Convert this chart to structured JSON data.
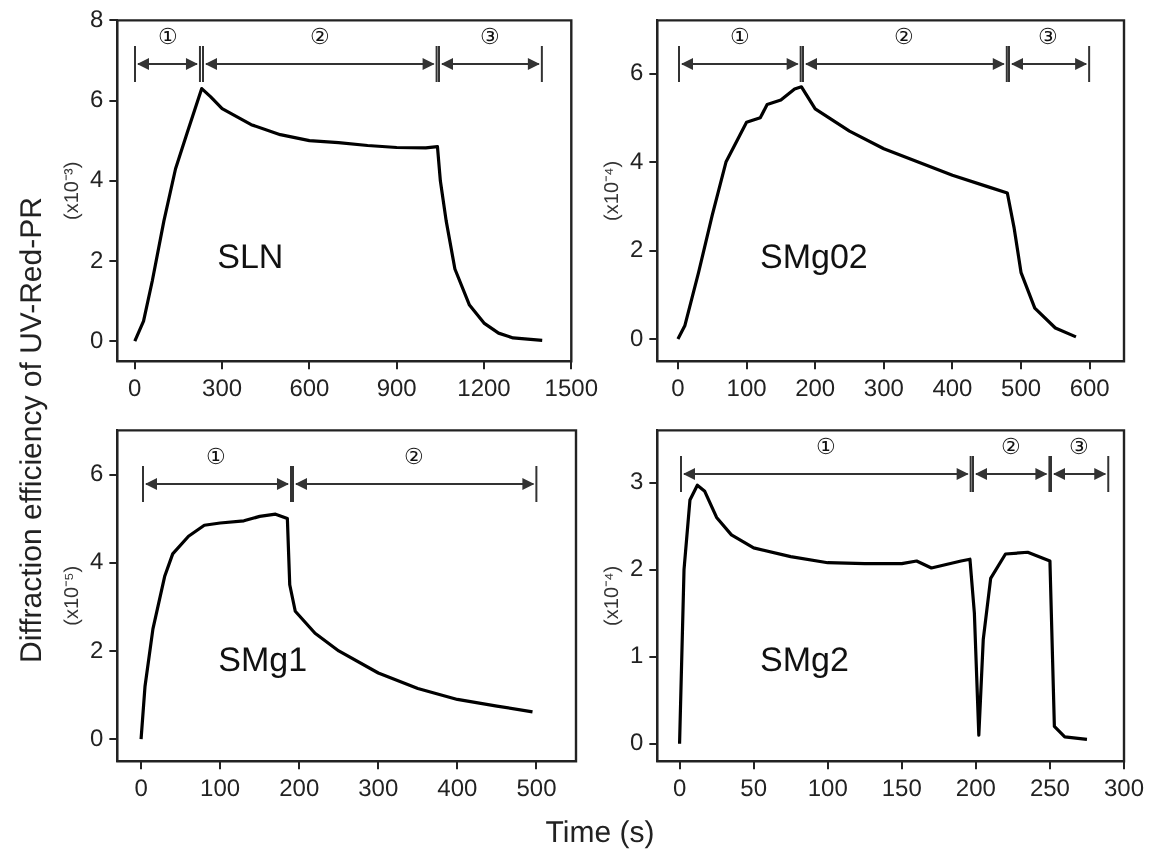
{
  "chart_data": [
    {
      "type": "line",
      "ylabel": "(x10⁻³)",
      "annotations": [
        "SLN",
        "①",
        "②",
        "③",
        "Diffraction efficiency of UV-Red-PR"
      ],
      "xlim": [
        -60,
        1500
      ],
      "xticks": [
        0,
        300,
        600,
        900,
        1200,
        1500
      ],
      "ylim": [
        -0.5,
        8
      ],
      "yticks": [
        0,
        2,
        4,
        6,
        8
      ],
      "grid": false,
      "legend": false,
      "marker": "none",
      "line_style": "solid",
      "series": [
        {
          "color": "#000000",
          "x": [
            0,
            30,
            60,
            100,
            140,
            180,
            230,
            260,
            300,
            400,
            500,
            600,
            700,
            800,
            900,
            1000,
            1040,
            1050,
            1070,
            1100,
            1150,
            1200,
            1250,
            1300,
            1400
          ],
          "values": [
            0,
            0.5,
            1.5,
            3,
            4.3,
            5.2,
            6.3,
            6.1,
            5.8,
            5.4,
            5.15,
            5,
            4.95,
            4.88,
            4.83,
            4.82,
            4.85,
            4,
            3,
            1.8,
            0.9,
            0.45,
            0.2,
            0.08,
            0.02
          ]
        }
      ]
    },
    {
      "type": "line",
      "ylabel": "(x10⁻⁴)",
      "annotations": [
        "SMg02",
        "①",
        "②",
        "③"
      ],
      "xlim": [
        -30,
        650
      ],
      "xticks": [
        0,
        100,
        200,
        300,
        400,
        500,
        600
      ],
      "ylim": [
        -0.5,
        7.2
      ],
      "yticks": [
        0,
        2,
        4,
        6
      ],
      "grid": false,
      "legend": false,
      "marker": "none",
      "line_style": "solid",
      "series": [
        {
          "color": "#000000",
          "x": [
            0,
            10,
            30,
            50,
            70,
            90,
            100,
            120,
            130,
            150,
            170,
            180,
            190,
            200,
            250,
            300,
            350,
            400,
            450,
            480,
            490,
            500,
            520,
            550,
            580
          ],
          "values": [
            0,
            0.3,
            1.5,
            2.8,
            4,
            4.6,
            4.9,
            5,
            5.3,
            5.4,
            5.65,
            5.7,
            5.45,
            5.2,
            4.7,
            4.3,
            4,
            3.7,
            3.45,
            3.3,
            2.5,
            1.5,
            0.7,
            0.25,
            0.05
          ]
        }
      ]
    },
    {
      "type": "line",
      "ylabel": "(x10⁻⁵)",
      "annotations": [
        "SMg1",
        "①",
        "②"
      ],
      "xlim": [
        -30,
        550
      ],
      "xticks": [
        0,
        100,
        200,
        300,
        400,
        500
      ],
      "ylim": [
        -0.5,
        7
      ],
      "yticks": [
        0,
        2,
        4,
        6
      ],
      "grid": false,
      "legend": false,
      "marker": "none",
      "line_style": "solid",
      "series": [
        {
          "color": "#000000",
          "x": [
            0,
            5,
            15,
            30,
            40,
            60,
            80,
            100,
            130,
            150,
            170,
            185,
            188,
            195,
            220,
            250,
            300,
            350,
            400,
            450,
            495
          ],
          "values": [
            0,
            1.2,
            2.5,
            3.7,
            4.2,
            4.6,
            4.85,
            4.9,
            4.95,
            5.05,
            5.1,
            5,
            3.5,
            2.9,
            2.4,
            2,
            1.5,
            1.15,
            0.9,
            0.75,
            0.62
          ]
        }
      ]
    },
    {
      "type": "line",
      "ylabel": "(x10⁻⁴)",
      "xlabel": "Time (s)",
      "annotations": [
        "SMg2",
        "①",
        "②",
        "③"
      ],
      "xlim": [
        -15,
        300
      ],
      "xticks": [
        0,
        50,
        100,
        150,
        200,
        250,
        300
      ],
      "ylim": [
        -0.2,
        3.6
      ],
      "yticks": [
        0,
        1,
        2,
        3
      ],
      "grid": false,
      "legend": false,
      "marker": "none",
      "line_style": "solid",
      "series": [
        {
          "color": "#000000",
          "x": [
            0,
            3,
            7,
            12,
            17,
            25,
            35,
            50,
            75,
            100,
            125,
            150,
            160,
            170,
            190,
            196,
            199,
            202,
            205,
            210,
            220,
            235,
            250,
            253,
            260,
            275
          ],
          "values": [
            0,
            2,
            2.8,
            2.97,
            2.9,
            2.6,
            2.4,
            2.25,
            2.15,
            2.08,
            2.07,
            2.07,
            2.1,
            2.02,
            2.1,
            2.12,
            1.5,
            0.1,
            1.2,
            1.9,
            2.18,
            2.2,
            2.1,
            0.2,
            0.08,
            0.05
          ]
        }
      ]
    }
  ]
}
